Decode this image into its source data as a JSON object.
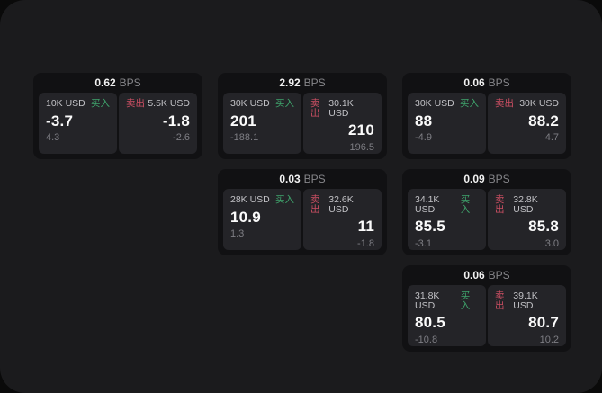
{
  "labels": {
    "bps": "BPS",
    "buy": "买入",
    "sell": "卖出"
  },
  "colors": {
    "canvas": "#0a0a0a",
    "window_bg": "#1b1b1d",
    "card_bg": "#111113",
    "panel_bg": "#242428",
    "buy_green": "#3fa46c",
    "sell_red": "#cc4f63"
  },
  "cards": [
    {
      "bps": "0.62",
      "buy": {
        "amount": "10K USD",
        "value": "-3.7",
        "sub": "4.3"
      },
      "sell": {
        "amount": "5.5K USD",
        "value": "-1.8",
        "sub": "-2.6"
      }
    },
    {
      "bps": "2.92",
      "buy": {
        "amount": "30K USD",
        "value": "201",
        "sub": "-188.1"
      },
      "sell": {
        "amount": "30.1K USD",
        "value": "210",
        "sub": "196.5"
      }
    },
    {
      "bps": "0.06",
      "buy": {
        "amount": "30K USD",
        "value": "88",
        "sub": "-4.9"
      },
      "sell": {
        "amount": "30K USD",
        "value": "88.2",
        "sub": "4.7"
      }
    },
    {
      "bps": "0.03",
      "buy": {
        "amount": "28K USD",
        "value": "10.9",
        "sub": "1.3"
      },
      "sell": {
        "amount": "32.6K USD",
        "value": "11",
        "sub": "-1.8"
      }
    },
    {
      "bps": "0.09",
      "buy": {
        "amount": "34.1K USD",
        "value": "85.5",
        "sub": "-3.1"
      },
      "sell": {
        "amount": "32.8K USD",
        "value": "85.8",
        "sub": "3.0"
      }
    },
    {
      "bps": "0.06",
      "buy": {
        "amount": "31.8K USD",
        "value": "80.5",
        "sub": "-10.8"
      },
      "sell": {
        "amount": "39.1K USD",
        "value": "80.7",
        "sub": "10.2"
      }
    }
  ]
}
